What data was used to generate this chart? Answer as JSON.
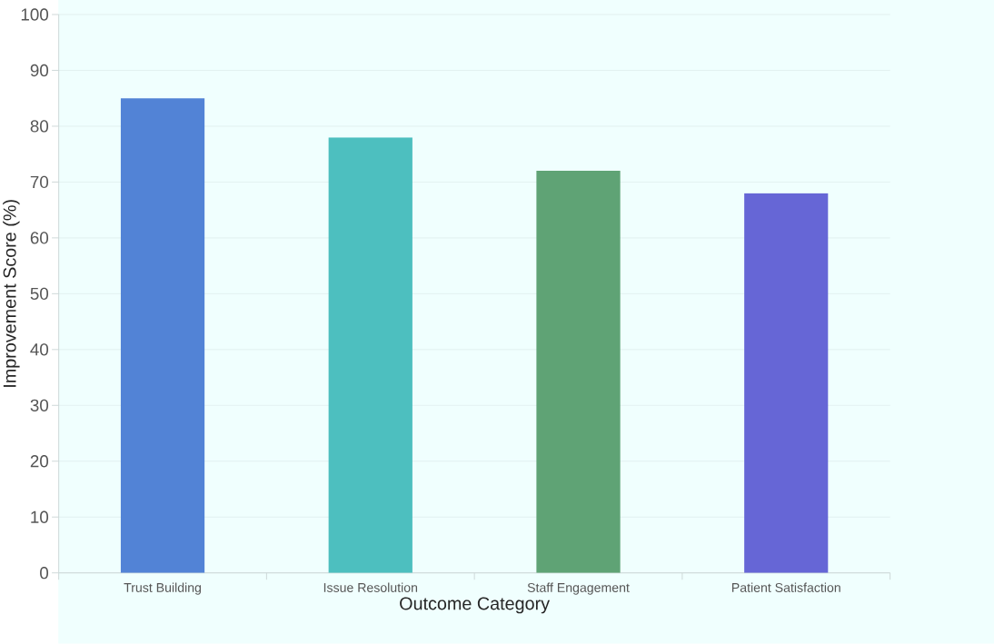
{
  "chart_data": {
    "type": "bar",
    "xlabel": "Outcome Category",
    "ylabel": "Improvement Score (%)",
    "categories": [
      "Trust Building",
      "Issue Resolution",
      "Staff Engagement",
      "Patient Satisfaction"
    ],
    "values": [
      85,
      78,
      72,
      68
    ],
    "colors": [
      "#5283d6",
      "#4dbfbf",
      "#5fa375",
      "#6666d6"
    ],
    "ylim": [
      0,
      100
    ],
    "yticks": [
      0,
      10,
      20,
      30,
      40,
      50,
      60,
      70,
      80,
      90,
      100
    ],
    "grid": "y"
  }
}
